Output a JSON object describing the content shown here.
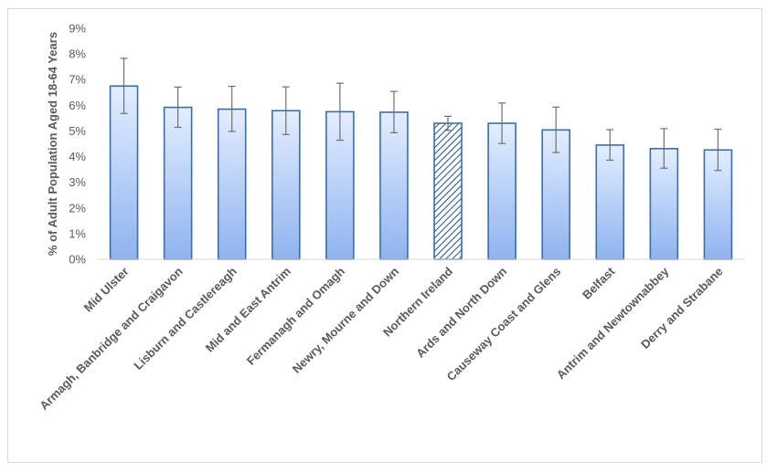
{
  "chart_data": {
    "type": "bar",
    "title": "",
    "xlabel": "",
    "ylabel": "% of Adult Population Aged 18-64 Years",
    "ylim": [
      0,
      9
    ],
    "yticks": [
      "0%",
      "1%",
      "2%",
      "3%",
      "4%",
      "5%",
      "6%",
      "7%",
      "8%",
      "9%"
    ],
    "grid": false,
    "categories": [
      "Mid Ulster",
      "Armagh, Banbridge and Craigavon",
      "Lisburn and Castlereagh",
      "Mid and East Antrim",
      "Fermanagh and Omagh",
      "Newry, Mourne and Down",
      "Northern Ireland",
      "Ards and North Down",
      "Causeway Coast and Glens",
      "Belfast",
      "Antrim and Newtownabbey",
      "Derry and Strabane"
    ],
    "values": [
      6.75,
      5.92,
      5.85,
      5.79,
      5.75,
      5.73,
      5.3,
      5.3,
      5.04,
      4.45,
      4.31,
      4.26
    ],
    "error_low": [
      5.68,
      5.14,
      4.98,
      4.86,
      4.64,
      4.93,
      5.02,
      4.51,
      4.16,
      3.86,
      3.55,
      3.46
    ],
    "error_high": [
      7.83,
      6.71,
      6.74,
      6.72,
      6.86,
      6.54,
      5.57,
      6.09,
      5.93,
      5.05,
      5.09,
      5.07
    ],
    "highlight_category": "Northern Ireland",
    "colors": {
      "bar_top": "#e3eeff",
      "bar_bottom": "#8fb3ef",
      "bar_border": "#3a6ea8",
      "highlight_stripe": "#1f4e8c",
      "error_bar": "#6f6f6f",
      "axis": "#d9d9d9",
      "text": "#595959"
    }
  }
}
